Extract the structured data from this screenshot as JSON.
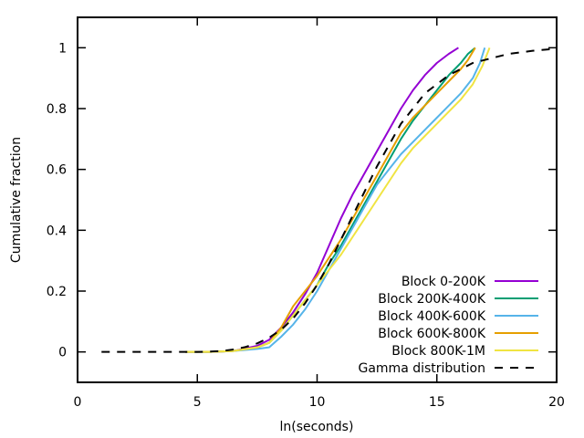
{
  "chart_data": {
    "type": "line",
    "title": "",
    "xlabel": "ln(seconds)",
    "ylabel": "Cumulative fraction",
    "xlim": [
      0,
      20
    ],
    "ylim": [
      -0.1,
      1.1
    ],
    "xticks": [
      0,
      5,
      10,
      15,
      20
    ],
    "xtick_labels": [
      "0",
      "5",
      "10",
      "15",
      "20"
    ],
    "yticks": [
      0,
      0.2,
      0.4,
      0.6,
      0.8,
      1
    ],
    "ytick_labels": [
      "0",
      "0.2",
      "0.4",
      "0.6",
      "0.8",
      "1"
    ],
    "grid": false,
    "legend_position": "bottom-right",
    "series": [
      {
        "name": "Block 0-200K",
        "color": "#9400d3",
        "dash": "solid",
        "points": [
          [
            4.5,
            0
          ],
          [
            5.5,
            0
          ],
          [
            6.5,
            0.003
          ],
          [
            7.5,
            0.02
          ],
          [
            8.0,
            0.04
          ],
          [
            8.5,
            0.08
          ],
          [
            9.0,
            0.13
          ],
          [
            9.5,
            0.19
          ],
          [
            10.0,
            0.26
          ],
          [
            10.5,
            0.35
          ],
          [
            11.0,
            0.44
          ],
          [
            11.5,
            0.52
          ],
          [
            12.0,
            0.59
          ],
          [
            12.5,
            0.66
          ],
          [
            13.0,
            0.73
          ],
          [
            13.5,
            0.8
          ],
          [
            14.0,
            0.86
          ],
          [
            14.5,
            0.91
          ],
          [
            15.0,
            0.95
          ],
          [
            15.5,
            0.98
          ],
          [
            15.9,
            1.0
          ]
        ]
      },
      {
        "name": "Block 200K-400K",
        "color": "#009e73",
        "dash": "solid",
        "points": [
          [
            4.5,
            0
          ],
          [
            5.5,
            0
          ],
          [
            6.5,
            0.003
          ],
          [
            7.5,
            0.015
          ],
          [
            8.0,
            0.03
          ],
          [
            8.5,
            0.07
          ],
          [
            9.0,
            0.12
          ],
          [
            9.5,
            0.17
          ],
          [
            10.0,
            0.22
          ],
          [
            10.5,
            0.29
          ],
          [
            11.0,
            0.35
          ],
          [
            11.5,
            0.42
          ],
          [
            12.0,
            0.49
          ],
          [
            12.5,
            0.56
          ],
          [
            13.0,
            0.63
          ],
          [
            13.5,
            0.7
          ],
          [
            14.0,
            0.76
          ],
          [
            14.5,
            0.81
          ],
          [
            15.0,
            0.86
          ],
          [
            15.5,
            0.91
          ],
          [
            16.0,
            0.95
          ],
          [
            16.3,
            0.98
          ],
          [
            16.6,
            1.0
          ]
        ]
      },
      {
        "name": "Block 400K-600K",
        "color": "#56b4e9",
        "dash": "solid",
        "points": [
          [
            4.5,
            0
          ],
          [
            5.5,
            0
          ],
          [
            6.5,
            0.003
          ],
          [
            7.5,
            0.01
          ],
          [
            8.0,
            0.015
          ],
          [
            8.5,
            0.05
          ],
          [
            9.0,
            0.09
          ],
          [
            9.5,
            0.14
          ],
          [
            10.0,
            0.2
          ],
          [
            10.5,
            0.27
          ],
          [
            11.0,
            0.34
          ],
          [
            11.5,
            0.41
          ],
          [
            12.0,
            0.48
          ],
          [
            12.5,
            0.55
          ],
          [
            13.0,
            0.6
          ],
          [
            13.5,
            0.65
          ],
          [
            14.0,
            0.69
          ],
          [
            14.5,
            0.73
          ],
          [
            15.0,
            0.77
          ],
          [
            15.5,
            0.81
          ],
          [
            16.0,
            0.85
          ],
          [
            16.5,
            0.9
          ],
          [
            16.8,
            0.95
          ],
          [
            17.0,
            1.0
          ]
        ]
      },
      {
        "name": "Block 600K-800K",
        "color": "#e69f00",
        "dash": "solid",
        "points": [
          [
            4.5,
            0
          ],
          [
            5.5,
            0
          ],
          [
            6.5,
            0.003
          ],
          [
            7.5,
            0.015
          ],
          [
            8.0,
            0.03
          ],
          [
            8.5,
            0.08
          ],
          [
            9.0,
            0.15
          ],
          [
            9.5,
            0.2
          ],
          [
            10.0,
            0.25
          ],
          [
            10.5,
            0.31
          ],
          [
            11.0,
            0.37
          ],
          [
            11.5,
            0.44
          ],
          [
            12.0,
            0.51
          ],
          [
            12.5,
            0.58
          ],
          [
            13.0,
            0.65
          ],
          [
            13.5,
            0.72
          ],
          [
            14.0,
            0.77
          ],
          [
            14.5,
            0.81
          ],
          [
            15.0,
            0.85
          ],
          [
            15.5,
            0.89
          ],
          [
            16.0,
            0.93
          ],
          [
            16.3,
            0.96
          ],
          [
            16.6,
            1.0
          ]
        ]
      },
      {
        "name": "Block 800K-1M",
        "color": "#f0e442",
        "dash": "solid",
        "points": [
          [
            4.5,
            0
          ],
          [
            5.5,
            0
          ],
          [
            6.5,
            0.003
          ],
          [
            7.5,
            0.015
          ],
          [
            8.0,
            0.03
          ],
          [
            8.5,
            0.07
          ],
          [
            9.0,
            0.12
          ],
          [
            9.5,
            0.17
          ],
          [
            10.0,
            0.22
          ],
          [
            10.5,
            0.27
          ],
          [
            11.0,
            0.32
          ],
          [
            11.5,
            0.38
          ],
          [
            12.0,
            0.44
          ],
          [
            12.5,
            0.5
          ],
          [
            13.0,
            0.56
          ],
          [
            13.5,
            0.62
          ],
          [
            14.0,
            0.67
          ],
          [
            14.5,
            0.71
          ],
          [
            15.0,
            0.75
          ],
          [
            15.5,
            0.79
          ],
          [
            16.0,
            0.83
          ],
          [
            16.5,
            0.88
          ],
          [
            16.9,
            0.94
          ],
          [
            17.2,
            1.0
          ]
        ]
      },
      {
        "name": "Gamma distribution",
        "color": "#000000",
        "dash": "dashed",
        "points": [
          [
            1.0,
            0
          ],
          [
            2.0,
            0
          ],
          [
            3.0,
            0
          ],
          [
            4.0,
            0
          ],
          [
            5.0,
            0
          ],
          [
            5.5,
            0.001
          ],
          [
            6.0,
            0.003
          ],
          [
            6.5,
            0.008
          ],
          [
            7.0,
            0.016
          ],
          [
            7.5,
            0.028
          ],
          [
            8.0,
            0.047
          ],
          [
            8.5,
            0.073
          ],
          [
            9.0,
            0.11
          ],
          [
            9.5,
            0.16
          ],
          [
            10.0,
            0.22
          ],
          [
            10.5,
            0.29
          ],
          [
            11.0,
            0.37
          ],
          [
            11.5,
            0.45
          ],
          [
            12.0,
            0.53
          ],
          [
            12.5,
            0.61
          ],
          [
            13.0,
            0.68
          ],
          [
            13.5,
            0.75
          ],
          [
            14.0,
            0.8
          ],
          [
            14.5,
            0.85
          ],
          [
            15.0,
            0.88
          ],
          [
            15.5,
            0.91
          ],
          [
            16.0,
            0.93
          ],
          [
            16.5,
            0.95
          ],
          [
            17.0,
            0.96
          ],
          [
            17.5,
            0.97
          ],
          [
            18.0,
            0.98
          ],
          [
            19.0,
            0.99
          ],
          [
            20.0,
            0.997
          ]
        ]
      }
    ]
  }
}
